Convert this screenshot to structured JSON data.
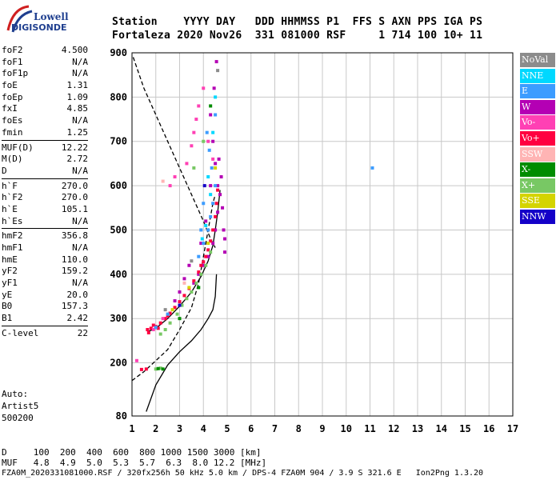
{
  "logo": {
    "top": "Lowell",
    "bottom": "DIGISONDE"
  },
  "header": {
    "line1": "Station    YYYY DAY   DDD HHMMSS P1  FFS S AXN PPS IGA PS",
    "line2": "Fortaleza 2020 Nov26  331 081000 RSF     1 714 100 10+ 11"
  },
  "params": [
    [
      {
        "name": "foF2",
        "value": "4.500"
      },
      {
        "name": "foF1",
        "value": "N/A"
      },
      {
        "name": "foF1p",
        "value": "N/A"
      },
      {
        "name": "foE",
        "value": "1.31"
      },
      {
        "name": "foEp",
        "value": "1.09"
      },
      {
        "name": "fxI",
        "value": "4.85"
      },
      {
        "name": "foEs",
        "value": "N/A"
      },
      {
        "name": "fmin",
        "value": "1.25"
      }
    ],
    [
      {
        "name": "MUF(D)",
        "value": "12.22"
      },
      {
        "name": "M(D)",
        "value": "2.72"
      },
      {
        "name": "D",
        "value": "N/A"
      }
    ],
    [
      {
        "name": "h`F",
        "value": "270.0"
      },
      {
        "name": "h`F2",
        "value": "270.0"
      },
      {
        "name": "h`E",
        "value": "105.1"
      },
      {
        "name": "h`Es",
        "value": "N/A"
      }
    ],
    [
      {
        "name": "hmF2",
        "value": "356.8"
      },
      {
        "name": "hmF1",
        "value": "N/A"
      },
      {
        "name": "hmE",
        "value": "110.0"
      },
      {
        "name": "yF2",
        "value": "159.2"
      },
      {
        "name": "yF1",
        "value": "N/A"
      },
      {
        "name": "yE",
        "value": "20.0"
      },
      {
        "name": "B0",
        "value": "157.3"
      },
      {
        "name": "B1",
        "value": "2.42"
      }
    ],
    [
      {
        "name": "C-level",
        "value": "22"
      }
    ]
  ],
  "auto": {
    "line1": "Auto:",
    "line2": "Artist5",
    "line3": "500200"
  },
  "legend": [
    {
      "label": "NoVal",
      "color": "#8c8c8c"
    },
    {
      "label": "NNE",
      "color": "#00d8ff"
    },
    {
      "label": "E",
      "color": "#3c9cff"
    },
    {
      "label": "W",
      "color": "#b400b4"
    },
    {
      "label": "Vo-",
      "color": "#ff40b4"
    },
    {
      "label": "Vo+",
      "color": "#ff0040"
    },
    {
      "label": "SSW",
      "color": "#ffb4b4"
    },
    {
      "label": "X-",
      "color": "#008c00"
    },
    {
      "label": "X+",
      "color": "#78c864"
    },
    {
      "label": "SSE",
      "color": "#d4d400"
    },
    {
      "label": "NNW",
      "color": "#1400c8"
    }
  ],
  "footer": {
    "d_line": "D     100  200  400  600  800 1000 1500 3000 [km]",
    "muf_line": "MUF   4.8  4.9  5.0  5.3  5.7  6.3  8.0 12.2 [MHz]",
    "info_line": "FZA0M_2020331081000.RSF / 320fx256h 50 kHz 5.0 km / DPS-4 FZA0M 904 / 3.9 S 321.6 E   Ion2Png 1.3.20"
  },
  "chart_data": {
    "type": "scatter",
    "title": "",
    "xlabel": "",
    "ylabel": "",
    "xlim": [
      1,
      17
    ],
    "ylim": [
      80,
      900
    ],
    "x_ticks": [
      1,
      2,
      3,
      4,
      5,
      6,
      7,
      8,
      9,
      10,
      11,
      12,
      13,
      14,
      15,
      16,
      17
    ],
    "y_ticks": [
      80,
      200,
      300,
      400,
      500,
      600,
      700,
      800,
      900
    ],
    "grid": true,
    "legend_position": "right",
    "series": [
      {
        "name": "W",
        "color": "#b400b4",
        "points": [
          [
            3.6,
            380
          ],
          [
            3.8,
            400
          ],
          [
            4.0,
            420
          ],
          [
            4.2,
            440
          ],
          [
            4.4,
            470
          ],
          [
            4.5,
            500
          ],
          [
            4.6,
            540
          ],
          [
            4.7,
            580
          ],
          [
            4.75,
            620
          ],
          [
            4.8,
            550
          ],
          [
            4.85,
            500
          ],
          [
            4.9,
            480
          ],
          [
            4.6,
            600
          ],
          [
            4.5,
            650
          ],
          [
            4.4,
            700
          ],
          [
            4.3,
            760
          ],
          [
            4.45,
            820
          ],
          [
            4.55,
            880
          ],
          [
            3.2,
            390
          ],
          [
            3.4,
            420
          ],
          [
            3.0,
            360
          ],
          [
            2.8,
            340
          ],
          [
            4.9,
            450
          ],
          [
            4.65,
            660
          ],
          [
            4.3,
            600
          ],
          [
            4.1,
            520
          ],
          [
            3.9,
            470
          ]
        ]
      },
      {
        "name": "Vo+",
        "color": "#ff0040",
        "points": [
          [
            1.65,
            275
          ],
          [
            1.8,
            278
          ],
          [
            2.0,
            282
          ],
          [
            2.2,
            290
          ],
          [
            2.4,
            300
          ],
          [
            2.6,
            312
          ],
          [
            2.8,
            325
          ],
          [
            3.0,
            338
          ],
          [
            3.2,
            352
          ],
          [
            3.4,
            368
          ],
          [
            3.6,
            385
          ],
          [
            3.8,
            405
          ],
          [
            4.0,
            428
          ],
          [
            4.2,
            455
          ],
          [
            4.3,
            475
          ],
          [
            4.4,
            500
          ],
          [
            4.5,
            530
          ],
          [
            4.55,
            560
          ],
          [
            4.6,
            590
          ],
          [
            1.7,
            268
          ],
          [
            1.9,
            285
          ],
          [
            2.1,
            278
          ],
          [
            1.4,
            185
          ],
          [
            1.6,
            186
          ],
          [
            3.9,
            420
          ],
          [
            4.1,
            440
          ],
          [
            2.5,
            306
          ]
        ]
      },
      {
        "name": "Vo-",
        "color": "#ff40b4",
        "points": [
          [
            3.5,
            690
          ],
          [
            3.6,
            720
          ],
          [
            3.7,
            750
          ],
          [
            3.8,
            780
          ],
          [
            4.0,
            820
          ],
          [
            2.6,
            600
          ],
          [
            2.8,
            620
          ],
          [
            1.9,
            275
          ],
          [
            2.3,
            300
          ],
          [
            4.2,
            700
          ],
          [
            4.4,
            660
          ],
          [
            1.2,
            205
          ],
          [
            3.3,
            650
          ]
        ]
      },
      {
        "name": "E",
        "color": "#3c9cff",
        "points": [
          [
            3.8,
            440
          ],
          [
            4.0,
            470
          ],
          [
            4.2,
            500
          ],
          [
            4.3,
            530
          ],
          [
            4.4,
            560
          ],
          [
            4.5,
            600
          ],
          [
            4.35,
            640
          ],
          [
            4.25,
            680
          ],
          [
            4.15,
            720
          ],
          [
            4.0,
            560
          ],
          [
            3.9,
            500
          ],
          [
            2.0,
            280
          ],
          [
            2.5,
            310
          ],
          [
            11.1,
            640
          ],
          [
            4.5,
            760
          ]
        ]
      },
      {
        "name": "NNE",
        "color": "#00d8ff",
        "points": [
          [
            4.1,
            510
          ],
          [
            4.3,
            580
          ],
          [
            4.2,
            620
          ],
          [
            3.95,
            480
          ],
          [
            4.4,
            720
          ],
          [
            4.5,
            800
          ]
        ]
      },
      {
        "name": "X+",
        "color": "#78c864",
        "points": [
          [
            2.2,
            265
          ],
          [
            2.4,
            275
          ],
          [
            2.6,
            290
          ],
          [
            2.9,
            310
          ],
          [
            3.1,
            330
          ],
          [
            3.3,
            345
          ],
          [
            3.5,
            360
          ],
          [
            3.7,
            380
          ],
          [
            3.9,
            400
          ],
          [
            4.1,
            420
          ],
          [
            4.3,
            450
          ],
          [
            2.0,
            186
          ],
          [
            2.2,
            188
          ],
          [
            3.6,
            640
          ],
          [
            4.0,
            700
          ]
        ]
      },
      {
        "name": "X-",
        "color": "#008c00",
        "points": [
          [
            2.1,
            187
          ],
          [
            2.3,
            186
          ],
          [
            3.0,
            300
          ],
          [
            3.8,
            370
          ],
          [
            4.3,
            780
          ]
        ]
      },
      {
        "name": "SSE",
        "color": "#d4d400",
        "points": [
          [
            2.7,
            320
          ],
          [
            3.4,
            370
          ],
          [
            4.2,
            470
          ],
          [
            4.5,
            640
          ]
        ]
      },
      {
        "name": "NoVal",
        "color": "#8c8c8c",
        "points": [
          [
            2.4,
            320
          ],
          [
            3.5,
            430
          ],
          [
            4.6,
            860
          ]
        ]
      },
      {
        "name": "NNW",
        "color": "#1400c8",
        "points": [
          [
            3.0,
            330
          ],
          [
            4.05,
            600
          ]
        ]
      },
      {
        "name": "SSW",
        "color": "#ffb4b4",
        "points": [
          [
            2.3,
            610
          ],
          [
            3.2,
            380
          ]
        ]
      }
    ],
    "lines": [
      {
        "style": "solid",
        "color": "#000000",
        "points": [
          [
            1.6,
            90
          ],
          [
            2.0,
            150
          ],
          [
            2.5,
            195
          ],
          [
            3.0,
            225
          ],
          [
            3.5,
            250
          ],
          [
            3.9,
            275
          ],
          [
            4.2,
            300
          ],
          [
            4.4,
            320
          ],
          [
            4.5,
            350
          ],
          [
            4.55,
            400
          ]
        ]
      },
      {
        "style": "solid",
        "color": "#000000",
        "points": [
          [
            1.65,
            270
          ],
          [
            2.0,
            278
          ],
          [
            2.5,
            300
          ],
          [
            3.0,
            328
          ],
          [
            3.5,
            360
          ],
          [
            3.9,
            395
          ],
          [
            4.2,
            430
          ],
          [
            4.4,
            465
          ],
          [
            4.5,
            500
          ],
          [
            4.6,
            540
          ],
          [
            4.7,
            590
          ]
        ]
      },
      {
        "style": "dashed",
        "color": "#000000",
        "points": [
          [
            1.0,
            160
          ],
          [
            1.5,
            180
          ],
          [
            2.0,
            205
          ],
          [
            2.5,
            230
          ],
          [
            3.0,
            275
          ],
          [
            3.5,
            325
          ],
          [
            3.8,
            380
          ],
          [
            4.0,
            440
          ],
          [
            4.2,
            500
          ],
          [
            4.4,
            560
          ],
          [
            4.5,
            580
          ]
        ]
      },
      {
        "style": "dashed",
        "color": "#000000",
        "points": [
          [
            1.05,
            890
          ],
          [
            1.5,
            820
          ],
          [
            2.0,
            760
          ],
          [
            2.5,
            700
          ],
          [
            3.0,
            640
          ],
          [
            3.5,
            580
          ],
          [
            4.0,
            520
          ],
          [
            4.3,
            480
          ],
          [
            4.5,
            460
          ]
        ]
      }
    ]
  }
}
